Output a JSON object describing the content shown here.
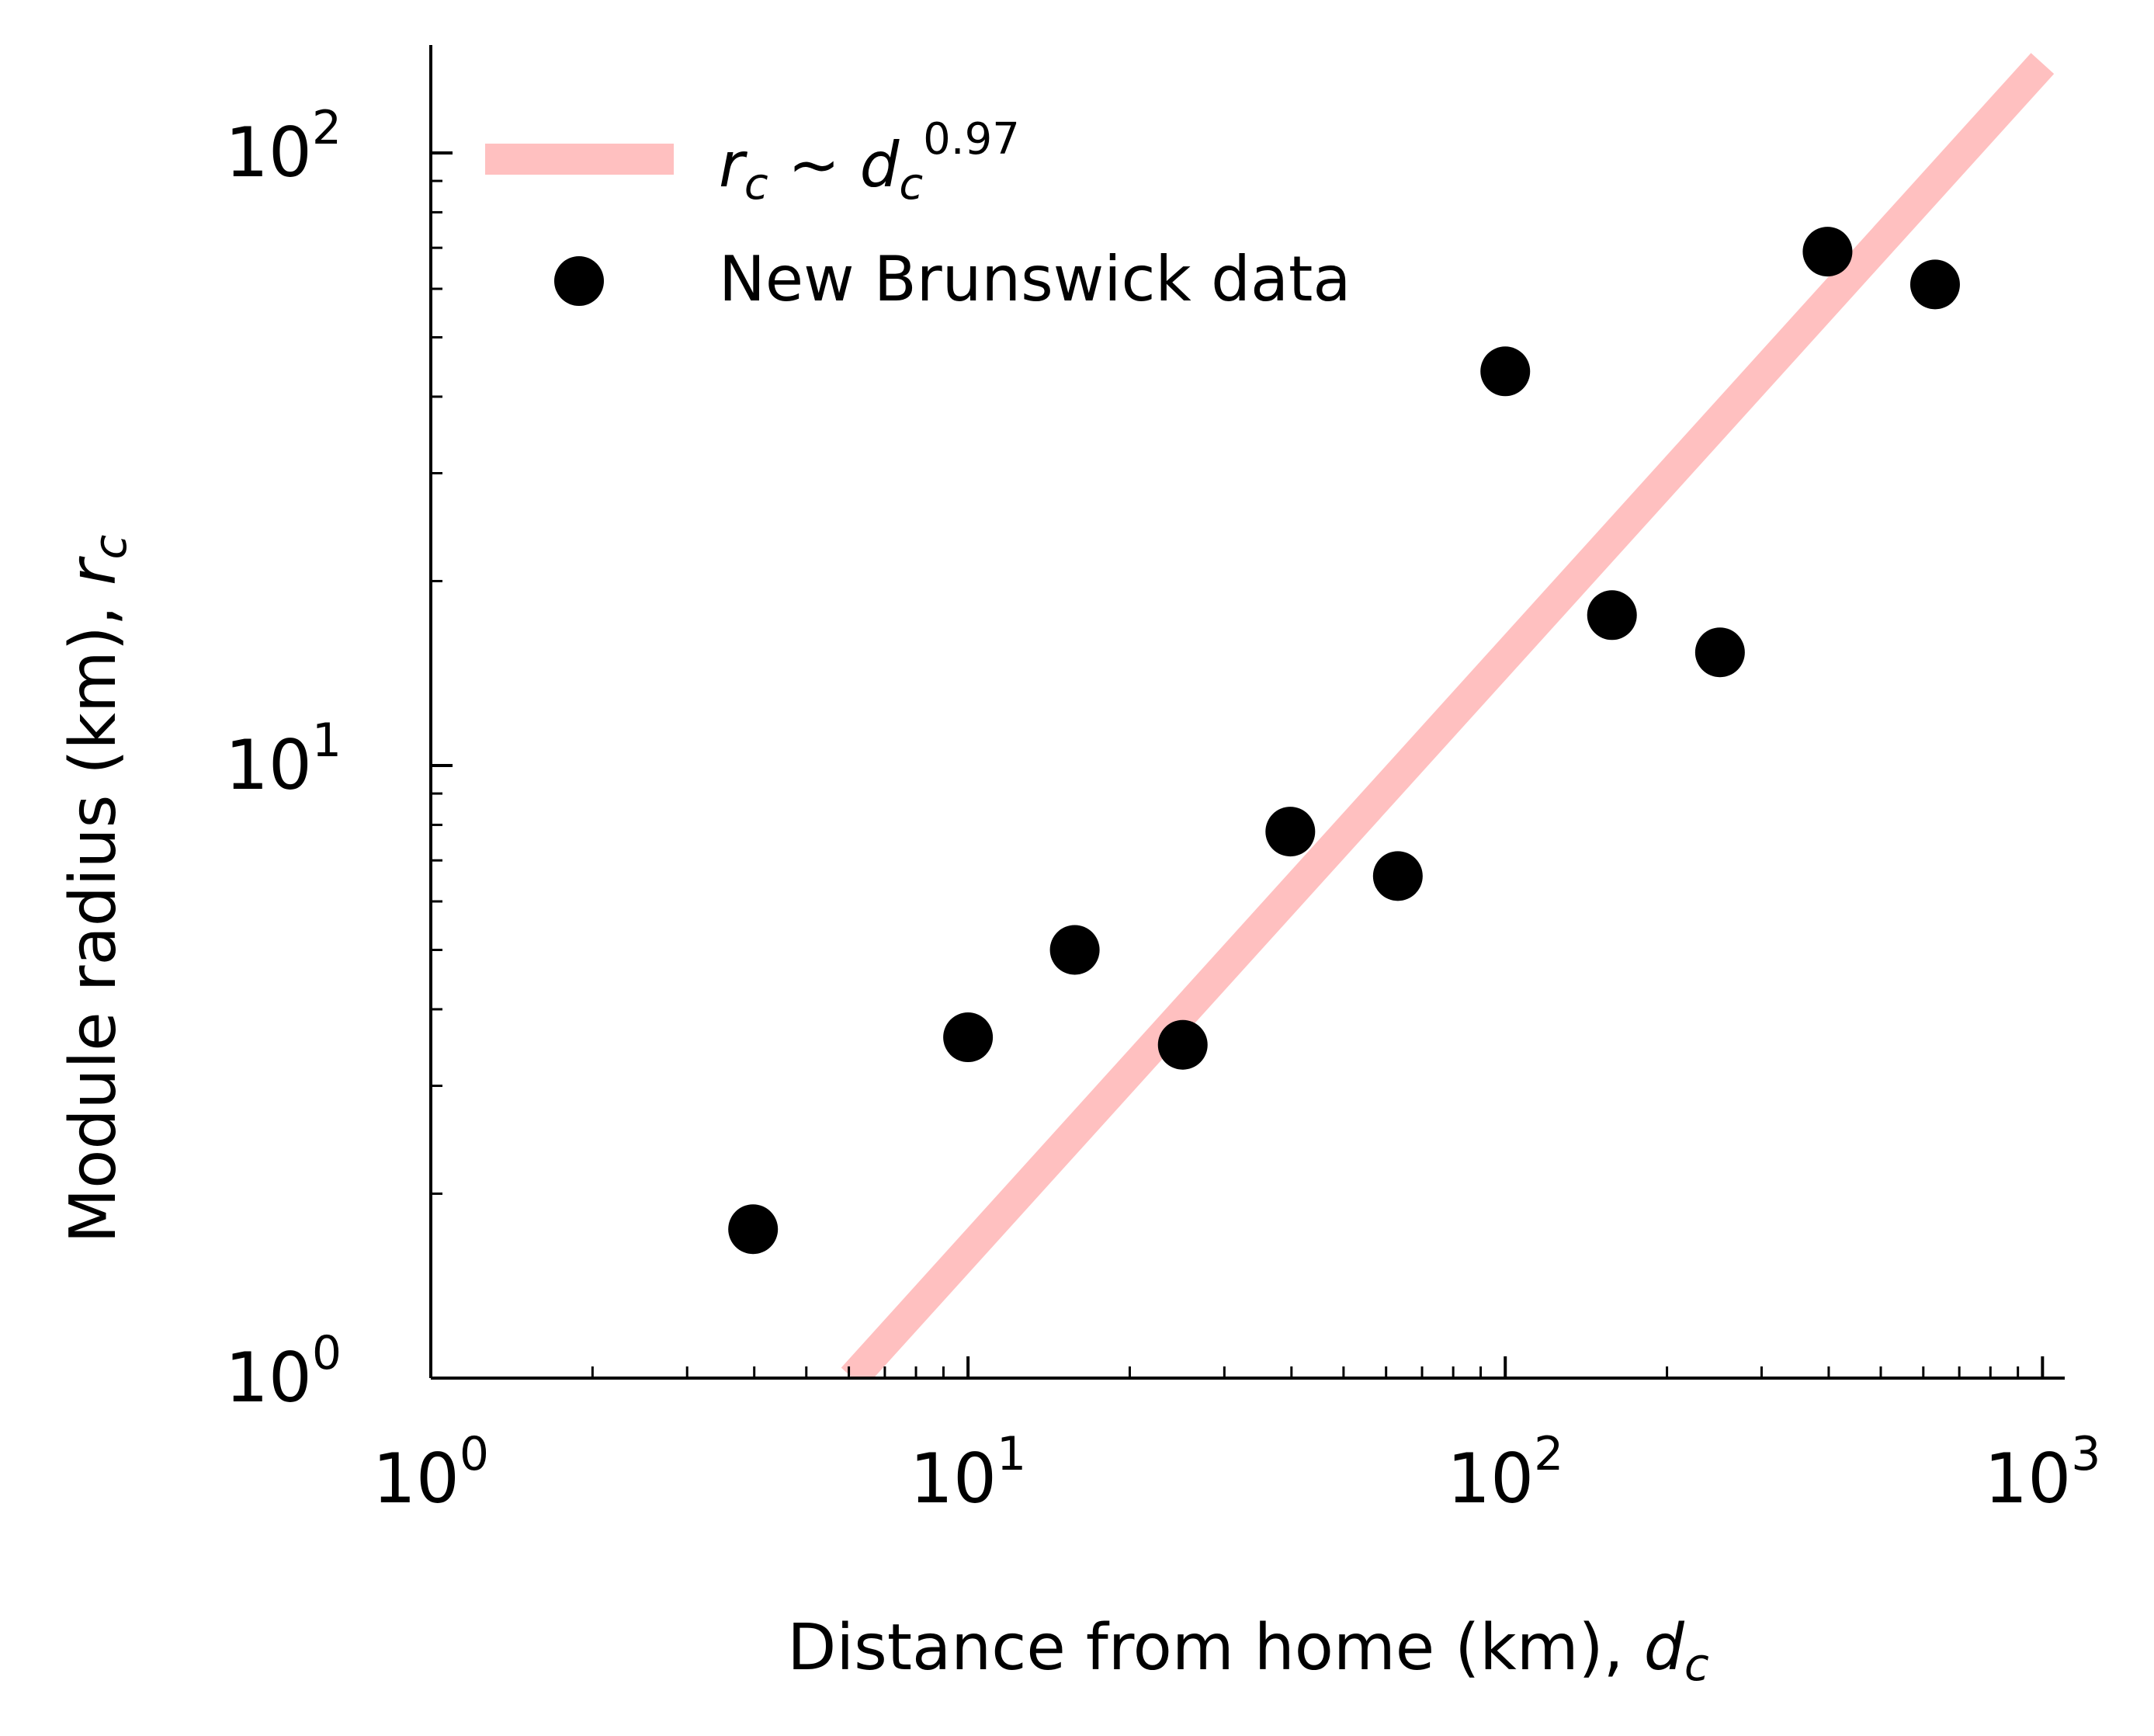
{
  "chart_data": {
    "type": "scatter",
    "x_scale": "log",
    "y_scale": "log",
    "xlim": [
      1,
      1100
    ],
    "ylim": [
      1,
      150
    ],
    "x_ticks": [
      {
        "value": 1,
        "base": "10",
        "exp": "0"
      },
      {
        "value": 10,
        "base": "10",
        "exp": "1"
      },
      {
        "value": 100,
        "base": "10",
        "exp": "2"
      },
      {
        "value": 1000,
        "base": "10",
        "exp": "3"
      }
    ],
    "y_ticks": [
      {
        "value": 1,
        "base": "10",
        "exp": "0"
      },
      {
        "value": 10,
        "base": "10",
        "exp": "1"
      },
      {
        "value": 100,
        "base": "10",
        "exp": "2"
      }
    ],
    "xlabel": {
      "text": "Distance from home (km), ",
      "var": "d",
      "sub": "c"
    },
    "ylabel": {
      "text": "Module radius (km), ",
      "var": "r",
      "sub": "c"
    },
    "grid": false,
    "legend_position": "top-left",
    "series": [
      {
        "kind": "line",
        "legend": {
          "r": "r",
          "r_sub": "c",
          "sim": " ~ ",
          "d": "d",
          "d_sub": "c",
          "exp": "0.97"
        },
        "color": "#ffc0c0",
        "exponent": 0.97,
        "points": [
          [
            6.1,
            1.0
          ],
          [
            1000,
            140
          ]
        ]
      },
      {
        "kind": "scatter",
        "name": "New Brunswick data",
        "color": "#000000",
        "x": [
          3.98,
          10,
          15.8,
          25.1,
          39.8,
          63.1,
          100,
          158,
          251,
          398,
          631
        ],
        "y": [
          1.75,
          3.6,
          5.0,
          3.5,
          7.8,
          6.6,
          44,
          17.6,
          15.3,
          69,
          61
        ]
      }
    ]
  }
}
